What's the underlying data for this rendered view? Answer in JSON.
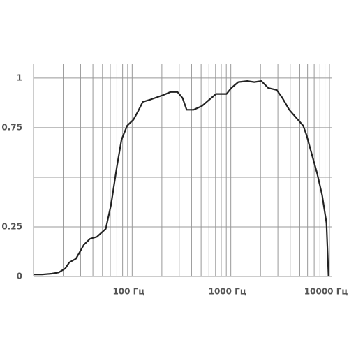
{
  "chart_data": {
    "type": "line",
    "log_x": true,
    "x": [
      10,
      12.2,
      15.3,
      18,
      21,
      23,
      27,
      32.4,
      37.5,
      44,
      54,
      61,
      69.8,
      78,
      89,
      103,
      114,
      128,
      150,
      208,
      245,
      288,
      324,
      357,
      420,
      512,
      602,
      710,
      906,
      1010,
      1190,
      1470,
      1730,
      2040,
      2400,
      2920,
      3330,
      3910,
      4600,
      5420,
      5880,
      6590,
      7500,
      8430,
      9320,
      9790
    ],
    "values": [
      0.01,
      0.01,
      0.014,
      0.02,
      0.04,
      0.07,
      0.09,
      0.16,
      0.19,
      0.2,
      0.24,
      0.36,
      0.55,
      0.69,
      0.76,
      0.79,
      0.83,
      0.88,
      0.89,
      0.915,
      0.93,
      0.93,
      0.9,
      0.84,
      0.84,
      0.86,
      0.89,
      0.92,
      0.92,
      0.95,
      0.98,
      0.985,
      0.98,
      0.985,
      0.95,
      0.94,
      0.9,
      0.84,
      0.8,
      0.76,
      0.71,
      0.62,
      0.52,
      0.41,
      0.27,
      0
    ],
    "color": "#222222",
    "xlim": [
      10,
      10500
    ],
    "ylim": [
      0,
      1.07
    ],
    "xticks": [
      {
        "value": 100,
        "label": "100 Гц"
      },
      {
        "value": 1000,
        "label": "1000 Гц"
      },
      {
        "value": 10000,
        "label": "10000 Гц"
      }
    ],
    "yticks": [
      0,
      0.25,
      0.75,
      1
    ],
    "xgrid": [
      20,
      30,
      40,
      50,
      60,
      70,
      80,
      90,
      100,
      200,
      300,
      400,
      500,
      600,
      700,
      800,
      900,
      1000,
      2000,
      3000,
      4000,
      5000,
      6000,
      7000,
      8000,
      9000,
      10000
    ],
    "ygrid": [
      0,
      0.25,
      0.5,
      0.75,
      1
    ],
    "grid": true
  }
}
